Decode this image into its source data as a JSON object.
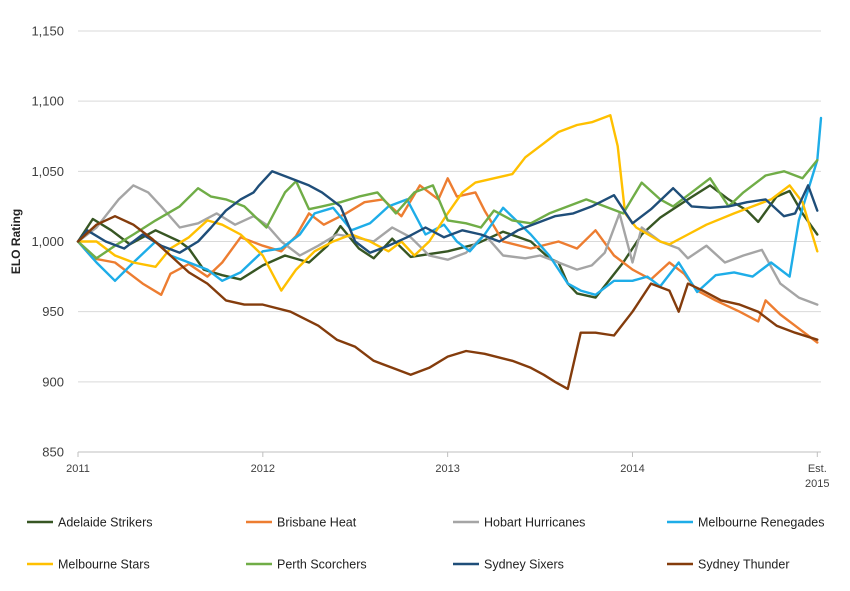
{
  "chart_data": {
    "type": "line",
    "title": "",
    "xlabel": "",
    "ylabel": "ELO Rating",
    "ylim": [
      850,
      1150
    ],
    "yticks": [
      850,
      900,
      950,
      1000,
      1050,
      1100,
      1150
    ],
    "ytick_labels": [
      "850",
      "900",
      "950",
      "1,000",
      "1,050",
      "1,100",
      "1,150"
    ],
    "xlim": [
      2011,
      2015.02
    ],
    "xticks": [
      {
        "value": 2011,
        "label": "2011"
      },
      {
        "value": 2012,
        "label": "2012"
      },
      {
        "value": 2013,
        "label": "2013"
      },
      {
        "value": 2014,
        "label": "2014"
      },
      {
        "value": 2015,
        "label": "Est. 2015"
      }
    ],
    "grid": "horizontal",
    "legend_position": "bottom",
    "series": [
      {
        "name": "Adelaide Strikers",
        "color": "#375623",
        "x": [
          2011.0,
          2011.08,
          2011.18,
          2011.28,
          2011.42,
          2011.55,
          2011.6,
          2011.68,
          2011.78,
          2011.88,
          2012.0,
          2012.12,
          2012.25,
          2012.35,
          2012.42,
          2012.52,
          2012.6,
          2012.7,
          2012.8,
          2012.9,
          2013.0,
          2013.15,
          2013.3,
          2013.45,
          2013.55,
          2013.6,
          2013.65,
          2013.7,
          2013.8,
          2013.95,
          2014.05,
          2014.15,
          2014.3,
          2014.42,
          2014.52,
          2014.62,
          2014.68,
          2014.78,
          2014.85,
          2014.92,
          2015.0
        ],
        "y": [
          1000,
          1016,
          1008,
          998,
          1008,
          1000,
          995,
          980,
          976,
          973,
          983,
          990,
          985,
          997,
          1011,
          995,
          988,
          1002,
          989,
          991,
          993,
          998,
          1007,
          1000,
          988,
          985,
          970,
          963,
          960,
          985,
          1005,
          1017,
          1030,
          1040,
          1030,
          1022,
          1014,
          1032,
          1036,
          1020,
          1005
        ]
      },
      {
        "name": "Brisbane Heat",
        "color": "#ED7D31",
        "x": [
          2011.0,
          2011.08,
          2011.2,
          2011.35,
          2011.45,
          2011.5,
          2011.6,
          2011.7,
          2011.78,
          2011.88,
          2012.0,
          2012.1,
          2012.18,
          2012.25,
          2012.33,
          2012.45,
          2012.55,
          2012.65,
          2012.75,
          2012.85,
          2012.95,
          2013.0,
          2013.05,
          2013.15,
          2013.2,
          2013.3,
          2013.45,
          2013.6,
          2013.7,
          2013.8,
          2013.9,
          2014.0,
          2014.1,
          2014.2,
          2014.28,
          2014.35,
          2014.45,
          2014.58,
          2014.68,
          2014.72,
          2014.8,
          2014.88,
          2015.0
        ],
        "y": [
          1000,
          988,
          985,
          970,
          962,
          977,
          984,
          975,
          985,
          1003,
          997,
          993,
          1004,
          1020,
          1012,
          1020,
          1028,
          1030,
          1018,
          1040,
          1030,
          1045,
          1032,
          1035,
          1022,
          1000,
          995,
          1000,
          995,
          1008,
          990,
          980,
          973,
          985,
          977,
          965,
          958,
          950,
          943,
          958,
          948,
          940,
          928
        ]
      },
      {
        "name": "Hobart Hurricanes",
        "color": "#A5A5A5",
        "x": [
          2011.0,
          2011.1,
          2011.22,
          2011.3,
          2011.38,
          2011.45,
          2011.55,
          2011.65,
          2011.75,
          2011.85,
          2011.95,
          2012.02,
          2012.1,
          2012.2,
          2012.3,
          2012.4,
          2012.5,
          2012.6,
          2012.7,
          2012.8,
          2012.9,
          2013.0,
          2013.1,
          2013.2,
          2013.3,
          2013.42,
          2013.5,
          2013.6,
          2013.7,
          2013.78,
          2013.85,
          2013.93,
          2014.0,
          2014.05,
          2014.15,
          2014.25,
          2014.3,
          2014.4,
          2014.5,
          2014.6,
          2014.7,
          2014.8,
          2014.9,
          2015.0
        ],
        "y": [
          1000,
          1010,
          1030,
          1040,
          1035,
          1025,
          1010,
          1013,
          1020,
          1012,
          1018,
          1012,
          1000,
          990,
          997,
          1005,
          1003,
          1000,
          1010,
          1003,
          990,
          987,
          992,
          1005,
          990,
          988,
          990,
          985,
          980,
          983,
          992,
          1020,
          985,
          1010,
          1000,
          995,
          988,
          997,
          985,
          990,
          994,
          970,
          960,
          955
        ]
      },
      {
        "name": "Melbourne Renegades",
        "color": "#1EADE8",
        "x": [
          2011.0,
          2011.1,
          2011.2,
          2011.3,
          2011.42,
          2011.5,
          2011.6,
          2011.7,
          2011.78,
          2011.88,
          2012.0,
          2012.1,
          2012.2,
          2012.28,
          2012.38,
          2012.48,
          2012.58,
          2012.68,
          2012.78,
          2012.88,
          2012.98,
          2013.05,
          2013.12,
          2013.2,
          2013.3,
          2013.45,
          2013.55,
          2013.65,
          2013.72,
          2013.8,
          2013.9,
          2014.0,
          2014.08,
          2014.15,
          2014.25,
          2014.35,
          2014.45,
          2014.55,
          2014.65,
          2014.75,
          2014.85,
          2014.9,
          2015.0,
          2015.02
        ],
        "y": [
          1000,
          985,
          972,
          985,
          1000,
          990,
          985,
          980,
          972,
          978,
          993,
          995,
          1005,
          1020,
          1024,
          1008,
          1013,
          1025,
          1030,
          1005,
          1012,
          1000,
          993,
          1005,
          1024,
          1005,
          990,
          970,
          965,
          962,
          972,
          972,
          975,
          968,
          985,
          964,
          976,
          978,
          975,
          985,
          975,
          1015,
          1058,
          1088
        ]
      },
      {
        "name": "Melbourne Stars",
        "color": "#FFC000",
        "x": [
          2011.0,
          2011.1,
          2011.2,
          2011.3,
          2011.42,
          2011.5,
          2011.6,
          2011.7,
          2011.78,
          2011.88,
          2012.0,
          2012.1,
          2012.18,
          2012.28,
          2012.38,
          2012.48,
          2012.58,
          2012.68,
          2012.75,
          2012.82,
          2012.9,
          2013.0,
          2013.08,
          2013.15,
          2013.25,
          2013.35,
          2013.42,
          2013.52,
          2013.6,
          2013.7,
          2013.78,
          2013.88,
          2013.92,
          2013.96,
          2014.02,
          2014.15,
          2014.2,
          2014.3,
          2014.4,
          2014.55,
          2014.65,
          2014.75,
          2014.85,
          2014.92,
          2015.0
        ],
        "y": [
          1000,
          1000,
          990,
          985,
          982,
          995,
          1003,
          1015,
          1012,
          1005,
          990,
          965,
          980,
          993,
          1000,
          1005,
          1000,
          993,
          1000,
          990,
          1000,
          1020,
          1035,
          1042,
          1045,
          1048,
          1060,
          1070,
          1078,
          1083,
          1085,
          1090,
          1068,
          1020,
          1010,
          1000,
          998,
          1005,
          1012,
          1020,
          1025,
          1030,
          1040,
          1028,
          993
        ]
      },
      {
        "name": "Perth Scorchers",
        "color": "#70AD47",
        "x": [
          2011.0,
          2011.1,
          2011.2,
          2011.3,
          2011.42,
          2011.55,
          2011.65,
          2011.72,
          2011.8,
          2011.9,
          2012.02,
          2012.12,
          2012.18,
          2012.25,
          2012.32,
          2012.42,
          2012.52,
          2012.62,
          2012.72,
          2012.82,
          2012.92,
          2013.0,
          2013.1,
          2013.18,
          2013.25,
          2013.35,
          2013.45,
          2013.55,
          2013.65,
          2013.75,
          2013.85,
          2013.95,
          2014.05,
          2014.15,
          2014.22,
          2014.32,
          2014.42,
          2014.52,
          2014.6,
          2014.72,
          2014.82,
          2014.92,
          2015.0
        ],
        "y": [
          1000,
          988,
          997,
          1005,
          1015,
          1025,
          1038,
          1032,
          1030,
          1025,
          1010,
          1035,
          1043,
          1023,
          1025,
          1028,
          1032,
          1035,
          1020,
          1035,
          1040,
          1015,
          1013,
          1010,
          1022,
          1015,
          1013,
          1020,
          1025,
          1030,
          1025,
          1020,
          1042,
          1030,
          1025,
          1035,
          1045,
          1025,
          1035,
          1047,
          1050,
          1045,
          1058
        ]
      },
      {
        "name": "Sydney Sixers",
        "color": "#1F4E79",
        "x": [
          2011.0,
          2011.05,
          2011.15,
          2011.25,
          2011.35,
          2011.45,
          2011.55,
          2011.65,
          2011.72,
          2011.8,
          2011.88,
          2011.95,
          2011.98,
          2012.05,
          2012.15,
          2012.25,
          2012.32,
          2012.42,
          2012.5,
          2012.58,
          2012.68,
          2012.78,
          2012.88,
          2012.98,
          2013.08,
          2013.18,
          2013.28,
          2013.38,
          2013.48,
          2013.58,
          2013.68,
          2013.78,
          2013.9,
          2014.0,
          2014.1,
          2014.22,
          2014.32,
          2014.42,
          2014.52,
          2014.62,
          2014.72,
          2014.82,
          2014.88,
          2014.95,
          2015.0
        ],
        "y": [
          1000,
          1008,
          1000,
          995,
          1005,
          997,
          992,
          1000,
          1010,
          1022,
          1030,
          1035,
          1040,
          1050,
          1045,
          1040,
          1035,
          1025,
          1000,
          992,
          997,
          1003,
          1010,
          1003,
          1008,
          1005,
          1000,
          1008,
          1013,
          1018,
          1020,
          1025,
          1033,
          1013,
          1023,
          1038,
          1025,
          1024,
          1025,
          1028,
          1030,
          1018,
          1020,
          1040,
          1022
        ]
      },
      {
        "name": "Sydney Thunder",
        "color": "#843C0C",
        "x": [
          2011.0,
          2011.1,
          2011.2,
          2011.3,
          2011.4,
          2011.5,
          2011.6,
          2011.7,
          2011.8,
          2011.9,
          2012.0,
          2012.15,
          2012.3,
          2012.4,
          2012.5,
          2012.6,
          2012.7,
          2012.8,
          2012.9,
          2013.0,
          2013.1,
          2013.2,
          2013.35,
          2013.45,
          2013.52,
          2013.58,
          2013.65,
          2013.72,
          2013.8,
          2013.9,
          2014.0,
          2014.1,
          2014.2,
          2014.25,
          2014.3,
          2014.38,
          2014.48,
          2014.58,
          2014.68,
          2014.78,
          2014.88,
          2015.0
        ],
        "y": [
          1000,
          1012,
          1018,
          1012,
          1002,
          990,
          978,
          970,
          958,
          955,
          955,
          950,
          940,
          930,
          925,
          915,
          910,
          905,
          910,
          918,
          922,
          920,
          915,
          910,
          905,
          900,
          895,
          935,
          935,
          933,
          950,
          970,
          965,
          950,
          970,
          965,
          958,
          955,
          950,
          940,
          935,
          930
        ]
      }
    ]
  }
}
